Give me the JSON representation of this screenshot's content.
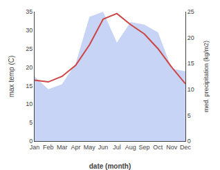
{
  "chart_data": {
    "type": "line",
    "xlabel": "date (month)",
    "ylabel": "max temp (C)",
    "y2label": "med. precipitation (kg/m2)",
    "categories": [
      "Jan",
      "Feb",
      "Mar",
      "Apr",
      "May",
      "Jun",
      "Jul",
      "Aug",
      "Sep",
      "Oct",
      "Nov",
      "Dec"
    ],
    "series": [
      {
        "type": "area",
        "axis": "y2",
        "color": "#c8d4f5",
        "values": [
          12.5,
          10.0,
          11.0,
          15.0,
          24.0,
          25.0,
          19.0,
          23.0,
          22.5,
          21.0,
          14.0,
          13.5
        ]
      },
      {
        "type": "line",
        "color": "#cc4444",
        "values": [
          16.5,
          16.0,
          17.5,
          20.5,
          26.0,
          33.0,
          34.5,
          31.5,
          29.0,
          25.0,
          20.0,
          15.5
        ]
      }
    ],
    "ylim": [
      0,
      35
    ],
    "yticks": [
      0,
      5,
      10,
      15,
      20,
      25,
      30,
      35
    ],
    "y2lim": [
      0,
      25
    ],
    "y2ticks": [
      0,
      5,
      10,
      15,
      20,
      25
    ],
    "grid": false
  }
}
